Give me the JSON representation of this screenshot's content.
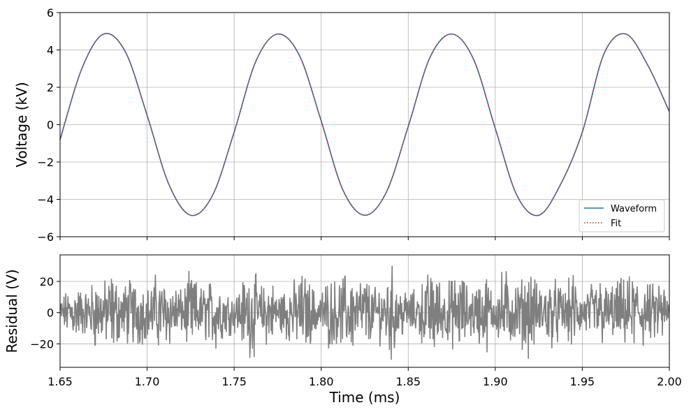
{
  "figure": {
    "x_ticks": [
      "1.65",
      "1.70",
      "1.75",
      "1.80",
      "1.85",
      "1.90",
      "1.95",
      "2.00"
    ]
  },
  "chart_data": [
    {
      "type": "line",
      "xlabel": "",
      "ylabel": "Voltage (kV)",
      "xlim": [
        1.65,
        2.0
      ],
      "ylim": [
        -6,
        6
      ],
      "y_ticks": [
        "6",
        "4",
        "2",
        "0",
        "−2",
        "−4",
        "−6"
      ],
      "grid": true,
      "legend": {
        "position": "lower-right",
        "entries": [
          "Waveform",
          "Fit"
        ]
      },
      "series": [
        {
          "name": "Waveform",
          "color": "#1f77b4",
          "style": "solid",
          "x": [
            1.65,
            1.6625,
            1.675,
            1.6875,
            1.7,
            1.7125,
            1.725,
            1.7375,
            1.75,
            1.7625,
            1.775,
            1.7875,
            1.8,
            1.8125,
            1.825,
            1.8375,
            1.85,
            1.8625,
            1.875,
            1.8875,
            1.9,
            1.9125,
            1.925,
            1.9375,
            1.95,
            1.9625,
            1.975,
            1.9875,
            2.0
          ],
          "y": [
            -0.8,
            3.0,
            4.85,
            3.9,
            0.5,
            -3.2,
            -4.85,
            -3.8,
            -0.4,
            3.4,
            4.85,
            3.7,
            0.2,
            -3.5,
            -4.85,
            -3.6,
            -0.1,
            3.6,
            4.85,
            3.5,
            -0.2,
            -3.8,
            -4.85,
            -3.2,
            -0.4,
            3.8,
            4.85,
            3.2,
            0.7
          ]
        },
        {
          "name": "Fit",
          "color": "#d62728",
          "style": "dotted",
          "x": [
            1.65,
            1.6625,
            1.675,
            1.6875,
            1.7,
            1.7125,
            1.725,
            1.7375,
            1.75,
            1.7625,
            1.775,
            1.7875,
            1.8,
            1.8125,
            1.825,
            1.8375,
            1.85,
            1.8625,
            1.875,
            1.8875,
            1.9,
            1.9125,
            1.925,
            1.9375,
            1.95,
            1.9625,
            1.975,
            1.9875,
            2.0
          ],
          "y": [
            -0.8,
            3.0,
            4.85,
            3.9,
            0.5,
            -3.2,
            -4.85,
            -3.8,
            -0.4,
            3.4,
            4.85,
            3.7,
            0.2,
            -3.5,
            -4.85,
            -3.6,
            -0.1,
            3.6,
            4.85,
            3.5,
            -0.2,
            -3.8,
            -4.85,
            -3.2,
            -0.4,
            3.8,
            4.85,
            3.2,
            0.7
          ]
        }
      ]
    },
    {
      "type": "line",
      "xlabel": "Time (ms)",
      "ylabel": "Residual (V)",
      "xlim": [
        1.65,
        2.0
      ],
      "ylim": [
        -35,
        37
      ],
      "y_ticks": [
        "20",
        "0",
        "−20"
      ],
      "y_tick_values": [
        20,
        0,
        -20
      ],
      "grid": true,
      "series": [
        {
          "color": "#7f7f7f",
          "x": [
            1.65,
            1.655,
            1.66,
            1.665,
            1.67,
            1.675,
            1.68,
            1.685,
            1.69,
            1.695,
            1.7,
            1.705,
            1.71,
            1.715,
            1.72,
            1.725,
            1.73,
            1.735,
            1.74,
            1.745,
            1.75,
            1.755,
            1.76,
            1.765,
            1.77,
            1.775,
            1.78,
            1.785,
            1.79,
            1.795,
            1.8,
            1.805,
            1.81,
            1.815,
            1.82,
            1.825,
            1.83,
            1.835,
            1.84,
            1.845,
            1.85,
            1.855,
            1.86,
            1.865,
            1.87,
            1.875,
            1.88,
            1.885,
            1.89,
            1.895,
            1.9,
            1.905,
            1.91,
            1.915,
            1.92,
            1.925,
            1.93,
            1.935,
            1.94,
            1.945,
            1.95,
            1.955,
            1.96,
            1.965,
            1.97,
            1.975,
            1.98,
            1.985,
            1.99,
            1.995,
            2.0
          ],
          "y": [
            2,
            -10,
            14,
            -8,
            20,
            -15,
            25,
            -12,
            18,
            -20,
            10,
            -22,
            16,
            -18,
            8,
            -24,
            12,
            -15,
            22,
            -10,
            6,
            -18,
            28,
            -12,
            20,
            -8,
            14,
            -16,
            24,
            -12,
            8,
            -20,
            14,
            -26,
            18,
            -22,
            10,
            -16,
            30,
            -14,
            6,
            -10,
            20,
            -28,
            12,
            -18,
            24,
            -10,
            16,
            -22,
            4,
            -30,
            14,
            -18,
            26,
            -12,
            20,
            -16,
            10,
            -24,
            6,
            -14,
            22,
            -10,
            18,
            -16,
            24,
            -20,
            12,
            -22,
            0
          ]
        }
      ]
    }
  ]
}
